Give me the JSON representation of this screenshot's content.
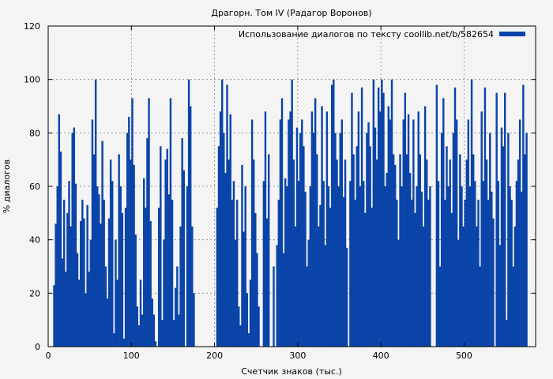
{
  "chart_data": {
    "type": "bar",
    "title": "Драгорн. Том IV (Радагор Воронов)",
    "xlabel": "Счетчик знаков (тыс.)",
    "ylabel": "% диалогов",
    "xlim": [
      0,
      586
    ],
    "ylim": [
      0,
      120
    ],
    "xticks": [
      "0",
      "100",
      "200",
      "300",
      "400",
      "500"
    ],
    "xtick_values": [
      0,
      100,
      200,
      300,
      400,
      500
    ],
    "yticks": [
      "0",
      "20",
      "40",
      "60",
      "80",
      "100",
      "120"
    ],
    "ytick_values": [
      0,
      20,
      40,
      60,
      80,
      100,
      120
    ],
    "grid": true,
    "legend_position": "top-right",
    "series": [
      {
        "name": "Использование диалогов по тексту coollib.net/b/582654",
        "color": "#0a44a8",
        "x_start": 7,
        "x_step": 2,
        "values": [
          23,
          46,
          60,
          87,
          73,
          33,
          55,
          28,
          50,
          62,
          45,
          80,
          82,
          61,
          35,
          25,
          47,
          55,
          48,
          20,
          53,
          28,
          40,
          85,
          72,
          100,
          60,
          57,
          46,
          77,
          55,
          30,
          18,
          48,
          70,
          62,
          5,
          40,
          25,
          72,
          60,
          50,
          3,
          52,
          80,
          86,
          70,
          93,
          68,
          42,
          15,
          8,
          25,
          12,
          63,
          52,
          78,
          93,
          47,
          18,
          12,
          2,
          0,
          52,
          75,
          10,
          40,
          70,
          74,
          57,
          93,
          55,
          10,
          22,
          30,
          12,
          45,
          78,
          66,
          0,
          60,
          100,
          90,
          45,
          20,
          0,
          0,
          0,
          0,
          0,
          0,
          0,
          0,
          0,
          0,
          0,
          0,
          0,
          52,
          75,
          88,
          100,
          80,
          65,
          98,
          70,
          87,
          55,
          62,
          40,
          55,
          15,
          8,
          68,
          43,
          60,
          20,
          5,
          25,
          85,
          70,
          50,
          35,
          15,
          0,
          0,
          62,
          88,
          48,
          72,
          0,
          0,
          30,
          0,
          38,
          55,
          85,
          93,
          35,
          63,
          60,
          85,
          88,
          100,
          70,
          45,
          82,
          62,
          80,
          85,
          75,
          58,
          30,
          40,
          60,
          88,
          80,
          93,
          72,
          45,
          53,
          90,
          62,
          38,
          88,
          60,
          52,
          98,
          100,
          80,
          70,
          60,
          80,
          85,
          56,
          70,
          37,
          0,
          62,
          95,
          72,
          55,
          75,
          88,
          60,
          97,
          62,
          50,
          80,
          84,
          75,
          52,
          100,
          82,
          70,
          97,
          88,
          100,
          95,
          60,
          65,
          90,
          85,
          100,
          72,
          68,
          55,
          40,
          72,
          60,
          85,
          95,
          72,
          87,
          65,
          55,
          85,
          50,
          60,
          88,
          72,
          58,
          45,
          90,
          70,
          55,
          60,
          0,
          0,
          0,
          98,
          62,
          30,
          80,
          93,
          55,
          75,
          60,
          70,
          50,
          80,
          97,
          85,
          40,
          72,
          60,
          45,
          55,
          70,
          85,
          60,
          100,
          72,
          62,
          45,
          55,
          30,
          88,
          62,
          97,
          70,
          55,
          80,
          58,
          48,
          0,
          95,
          62,
          38,
          82,
          75,
          95,
          10,
          80,
          60,
          55,
          30,
          45,
          62,
          70,
          85,
          58,
          98,
          72,
          80
        ]
      }
    ]
  }
}
